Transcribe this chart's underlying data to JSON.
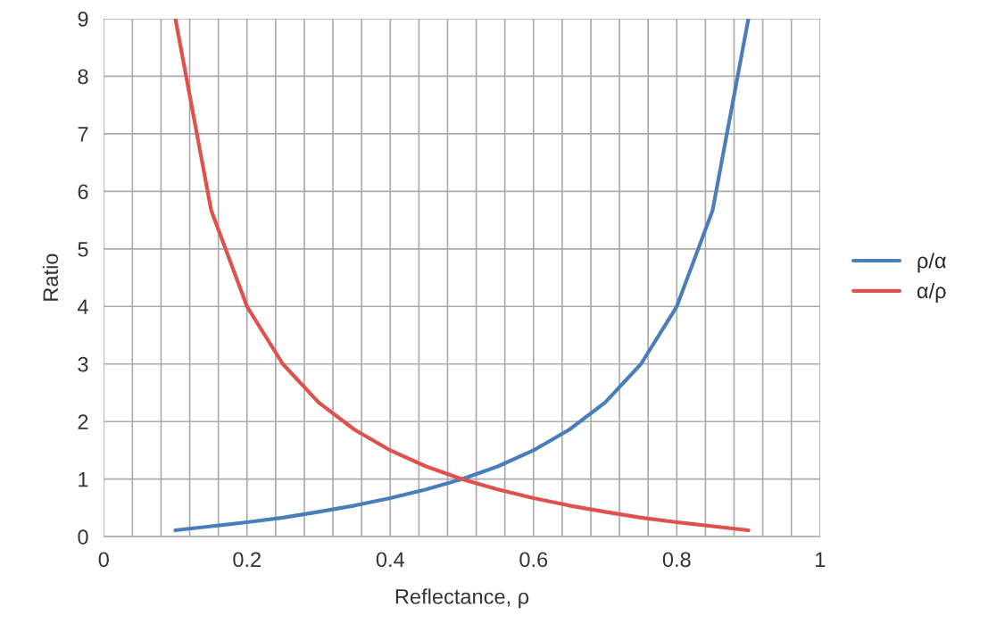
{
  "chart_data": {
    "type": "line",
    "xlabel": "Reflectance, ρ",
    "ylabel": "Ratio",
    "x": [
      0.1,
      0.15,
      0.2,
      0.25,
      0.3,
      0.35,
      0.4,
      0.45,
      0.5,
      0.55,
      0.6,
      0.65,
      0.7,
      0.75,
      0.8,
      0.85,
      0.9
    ],
    "series": [
      {
        "name": "ρ/α",
        "color": "#4a7ebb",
        "values": [
          0.11,
          0.18,
          0.25,
          0.33,
          0.43,
          0.54,
          0.67,
          0.82,
          1,
          1.22,
          1.5,
          1.86,
          2.33,
          3,
          4,
          5.67,
          9
        ]
      },
      {
        "name": "α/ρ",
        "color": "#e0504d",
        "values": [
          9,
          5.67,
          4,
          3,
          2.33,
          1.86,
          1.5,
          1.22,
          1,
          0.82,
          0.67,
          0.54,
          0.43,
          0.33,
          0.25,
          0.18,
          0.11
        ]
      }
    ],
    "xlim": [
      0,
      1
    ],
    "xticks": [
      0,
      {
        "value": 0.04,
        "label": null
      },
      {
        "value": 0.08,
        "label": null
      },
      {
        "value": 0.12,
        "label": null
      },
      {
        "value": 0.16,
        "label": null
      },
      0.2,
      {
        "value": 0.24,
        "label": null
      },
      {
        "value": 0.28,
        "label": null
      },
      {
        "value": 0.32,
        "label": null
      },
      {
        "value": 0.36,
        "label": null
      },
      0.4,
      {
        "value": 0.44,
        "label": null
      },
      {
        "value": 0.48,
        "label": null
      },
      {
        "value": 0.52,
        "label": null
      },
      {
        "value": 0.56,
        "label": null
      },
      0.6,
      {
        "value": 0.64,
        "label": null
      },
      {
        "value": 0.68,
        "label": null
      },
      {
        "value": 0.72,
        "label": null
      },
      {
        "value": 0.76,
        "label": null
      },
      0.8,
      {
        "value": 0.84,
        "label": null
      },
      {
        "value": 0.88,
        "label": null
      },
      {
        "value": 0.92,
        "label": null
      },
      {
        "value": 0.96,
        "label": null
      },
      1
    ],
    "ylim": [
      0,
      9
    ],
    "yticks": [
      0,
      1,
      2,
      3,
      4,
      5,
      6,
      7,
      8,
      9
    ],
    "grid": true,
    "legend": "right",
    "marker": "none",
    "line_style": "solid"
  }
}
